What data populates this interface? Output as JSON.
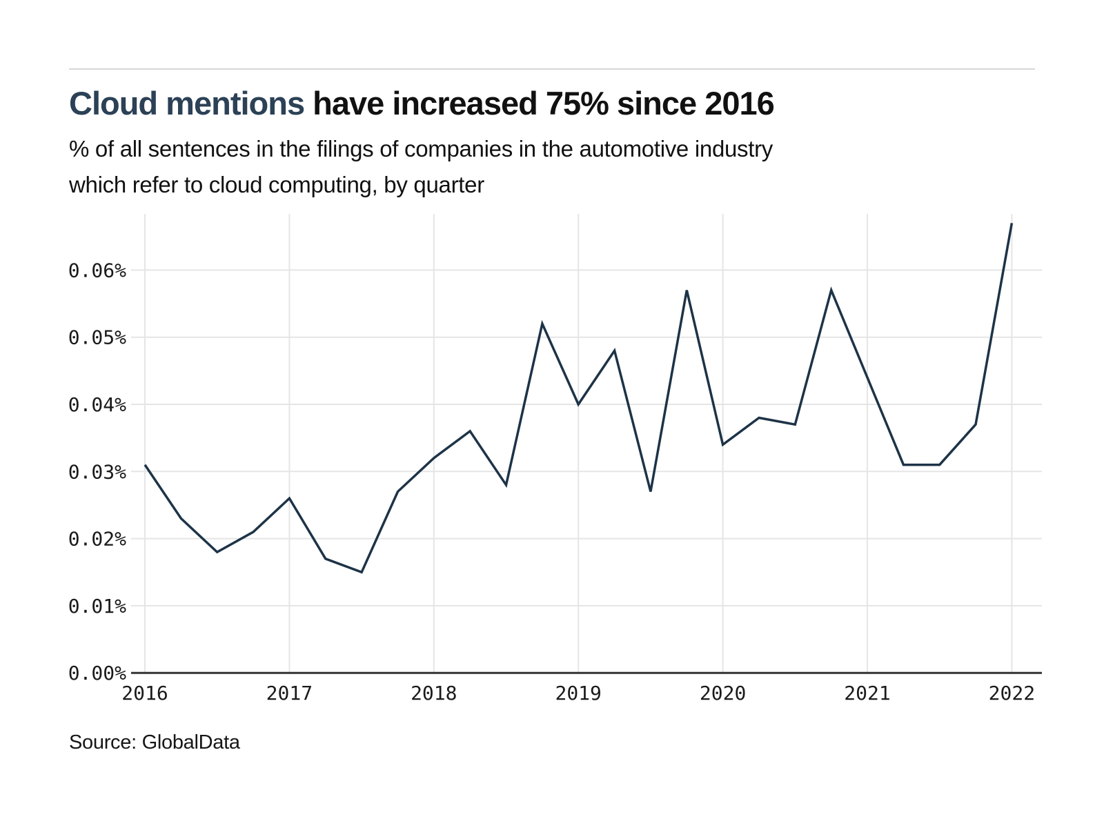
{
  "page": {
    "title_accent": "Cloud mentions",
    "title_rest": " have increased 75% since 2016",
    "subtitle_lines": [
      "% of all sentences in the filings of companies in the automotive industry",
      "which refer to cloud computing, by quarter"
    ],
    "source": "Source: GlobalData"
  },
  "colors": {
    "accent_title": "#2c4156",
    "line": "#1d3347",
    "grid": "#e5e5e5",
    "axis": "#333333",
    "tick_text": "#1a1a1a"
  },
  "chart_data": {
    "type": "line",
    "title": "Cloud mentions have increased 75% since 2016",
    "subtitle": "% of all sentences in the filings of companies in the automotive industry which refer to cloud computing, by quarter",
    "unit": "%",
    "grid": true,
    "legend": false,
    "ylim": [
      0,
      0.0685
    ],
    "y_ticks": [
      {
        "label": "0.00%",
        "value": 0.0
      },
      {
        "label": "0.01%",
        "value": 0.01
      },
      {
        "label": "0.02%",
        "value": 0.02
      },
      {
        "label": "0.03%",
        "value": 0.03
      },
      {
        "label": "0.04%",
        "value": 0.04
      },
      {
        "label": "0.05%",
        "value": 0.05
      },
      {
        "label": "0.06%",
        "value": 0.06
      }
    ],
    "x_tick_labels": [
      "2016",
      "2017",
      "2018",
      "2019",
      "2020",
      "2021",
      "2022"
    ],
    "quarters": [
      "2016 Q1",
      "2016 Q2",
      "2016 Q3",
      "2016 Q4",
      "2017 Q1",
      "2017 Q2",
      "2017 Q3",
      "2017 Q4",
      "2018 Q1",
      "2018 Q2",
      "2018 Q3",
      "2018 Q4",
      "2019 Q1",
      "2019 Q2",
      "2019 Q3",
      "2019 Q4",
      "2020 Q1",
      "2020 Q2",
      "2020 Q3",
      "2020 Q4",
      "2021 Q1",
      "2021 Q2",
      "2021 Q3",
      "2021 Q4",
      "2022 Q1"
    ],
    "values": [
      0.031,
      0.023,
      0.018,
      0.021,
      0.026,
      0.017,
      0.015,
      0.027,
      0.032,
      0.036,
      0.028,
      0.052,
      0.04,
      0.048,
      0.027,
      0.057,
      0.034,
      0.038,
      0.037,
      0.057,
      0.044,
      0.031,
      0.031,
      0.037,
      0.067
    ]
  }
}
